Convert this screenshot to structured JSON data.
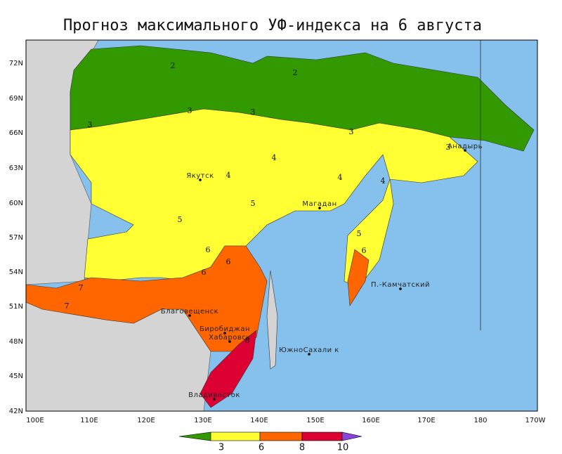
{
  "title": "Прогноз максимального УФ-индекса на  6 августа",
  "latitudes": [
    "72N",
    "69N",
    "66N",
    "63N",
    "60N",
    "57N",
    "54N",
    "51N",
    "48N",
    "45N",
    "42N"
  ],
  "longitudes": [
    "100E",
    "110E",
    "120E",
    "130E",
    "140E",
    "150E",
    "160E",
    "170E",
    "180",
    "170W"
  ],
  "cities": [
    "Якутск",
    "Магадан",
    "Анадырь",
    "Благовещенск",
    "Биробиджан",
    "Хабаровск",
    "ЮжноСахали к",
    "Владивосток",
    "П.-Камчатский"
  ],
  "contour_labels": [
    2,
    2,
    3,
    3,
    3,
    3,
    3,
    4,
    4,
    4,
    4,
    5,
    5,
    5,
    6,
    6,
    6,
    6,
    7,
    7,
    8
  ],
  "colorbar": {
    "colors": [
      "#339900",
      "#ffff33",
      "#ff6600",
      "#dd0033",
      "#8844dd"
    ],
    "ticks": [
      3,
      6,
      8,
      10
    ]
  }
}
